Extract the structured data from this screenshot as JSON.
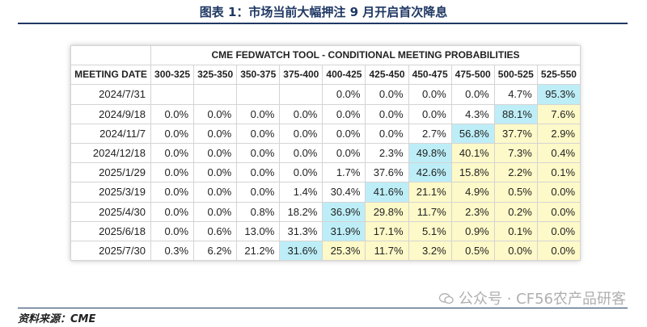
{
  "figure": {
    "title": "图表 1：市场当前大幅押注 9 月开启首次降息",
    "source": "资料来源：CME",
    "watermark": "公众号 · CF56农产品研客"
  },
  "colors": {
    "title_blue": "#1f3864",
    "max_highlight": "#bdeef7",
    "range_highlight": "#fdf9c8"
  },
  "chart_data": {
    "type": "table",
    "title": "CME FEDWATCH TOOL - CONDITIONAL MEETING PROBABILITIES",
    "row_header": "MEETING DATE",
    "columns": [
      "300-325",
      "325-350",
      "350-375",
      "375-400",
      "400-425",
      "425-450",
      "450-475",
      "475-500",
      "500-525",
      "525-550"
    ],
    "rows": [
      {
        "date": "2024/7/31",
        "values": [
          "",
          "",
          "",
          "",
          "0.0%",
          "0.0%",
          "0.0%",
          "0.0%",
          "4.7%",
          "95.3%"
        ],
        "max_col": 9,
        "yellow_cols": []
      },
      {
        "date": "2024/9/18",
        "values": [
          "0.0%",
          "0.0%",
          "0.0%",
          "0.0%",
          "0.0%",
          "0.0%",
          "0.0%",
          "4.3%",
          "88.1%",
          "7.6%"
        ],
        "max_col": 8,
        "yellow_cols": [
          9
        ]
      },
      {
        "date": "2024/11/7",
        "values": [
          "0.0%",
          "0.0%",
          "0.0%",
          "0.0%",
          "0.0%",
          "0.0%",
          "2.7%",
          "56.8%",
          "37.7%",
          "2.9%"
        ],
        "max_col": 7,
        "yellow_cols": [
          8,
          9
        ]
      },
      {
        "date": "2024/12/18",
        "values": [
          "0.0%",
          "0.0%",
          "0.0%",
          "0.0%",
          "0.0%",
          "2.3%",
          "49.8%",
          "40.1%",
          "7.3%",
          "0.4%"
        ],
        "max_col": 6,
        "yellow_cols": [
          7,
          8,
          9
        ]
      },
      {
        "date": "2025/1/29",
        "values": [
          "0.0%",
          "0.0%",
          "0.0%",
          "0.0%",
          "1.7%",
          "37.6%",
          "42.6%",
          "15.8%",
          "2.2%",
          "0.1%"
        ],
        "max_col": 6,
        "yellow_cols": [
          7,
          8,
          9
        ]
      },
      {
        "date": "2025/3/19",
        "values": [
          "0.0%",
          "0.0%",
          "0.0%",
          "1.4%",
          "30.4%",
          "41.6%",
          "21.1%",
          "4.9%",
          "0.5%",
          "0.0%"
        ],
        "max_col": 5,
        "yellow_cols": [
          6,
          7,
          8,
          9
        ]
      },
      {
        "date": "2025/4/30",
        "values": [
          "0.0%",
          "0.0%",
          "0.8%",
          "18.2%",
          "36.9%",
          "29.8%",
          "11.7%",
          "2.3%",
          "0.2%",
          "0.0%"
        ],
        "max_col": 4,
        "yellow_cols": [
          5,
          6,
          7,
          8,
          9
        ]
      },
      {
        "date": "2025/6/18",
        "values": [
          "0.0%",
          "0.6%",
          "13.0%",
          "31.3%",
          "31.9%",
          "17.1%",
          "5.1%",
          "0.9%",
          "0.1%",
          "0.0%"
        ],
        "max_col": 4,
        "yellow_cols": [
          5,
          6,
          7,
          8,
          9
        ]
      },
      {
        "date": "2025/7/30",
        "values": [
          "0.3%",
          "6.2%",
          "21.2%",
          "31.6%",
          "25.3%",
          "11.7%",
          "3.2%",
          "0.5%",
          "0.0%",
          "0.0%"
        ],
        "max_col": 3,
        "yellow_cols": [
          4,
          5,
          6,
          7,
          8,
          9
        ]
      }
    ]
  }
}
